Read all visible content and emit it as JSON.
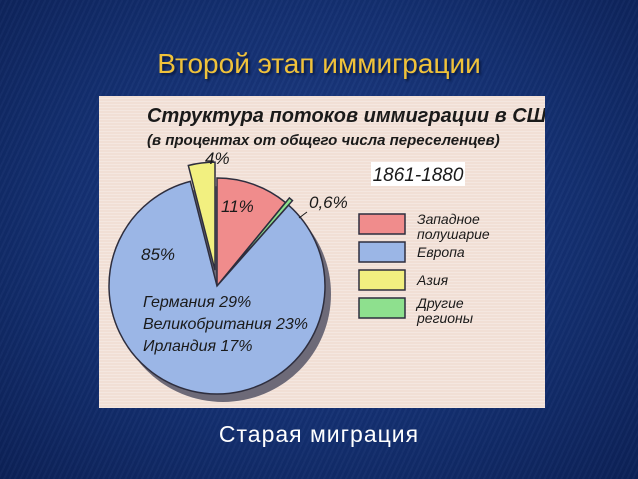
{
  "slide": {
    "title": "Второй этап иммиграции",
    "caption": "Старая миграция"
  },
  "chart_data": {
    "type": "pie",
    "title": "Структура потоков иммиграции в США",
    "subtitle": "(в процентах от общего числа переселенцев)",
    "period": "1861-1880",
    "slices": [
      {
        "name": "Западное полушарие",
        "label": "11%",
        "value": 11,
        "color": "#f08c8c"
      },
      {
        "name": "Другие регионы",
        "label": "0,6%",
        "value": 0.6,
        "color": "#8ee08e"
      },
      {
        "name": "Европа",
        "label": "85%",
        "value": 85,
        "color": "#9bb6e6"
      },
      {
        "name": "Азия",
        "label": "4%",
        "value": 4,
        "color": "#f2f080"
      }
    ],
    "legend": [
      {
        "name": "Западное полушарие",
        "color": "#f08c8c"
      },
      {
        "name": "Европа",
        "color": "#9bb6e6"
      },
      {
        "name": "Азия",
        "color": "#f2f080"
      },
      {
        "name": "Другие регионы",
        "color": "#8ee08e"
      }
    ],
    "europe_breakdown": [
      "Германия 29%",
      "Великобритания 23%",
      "Ирландия 17%"
    ],
    "legend_position": "right"
  }
}
